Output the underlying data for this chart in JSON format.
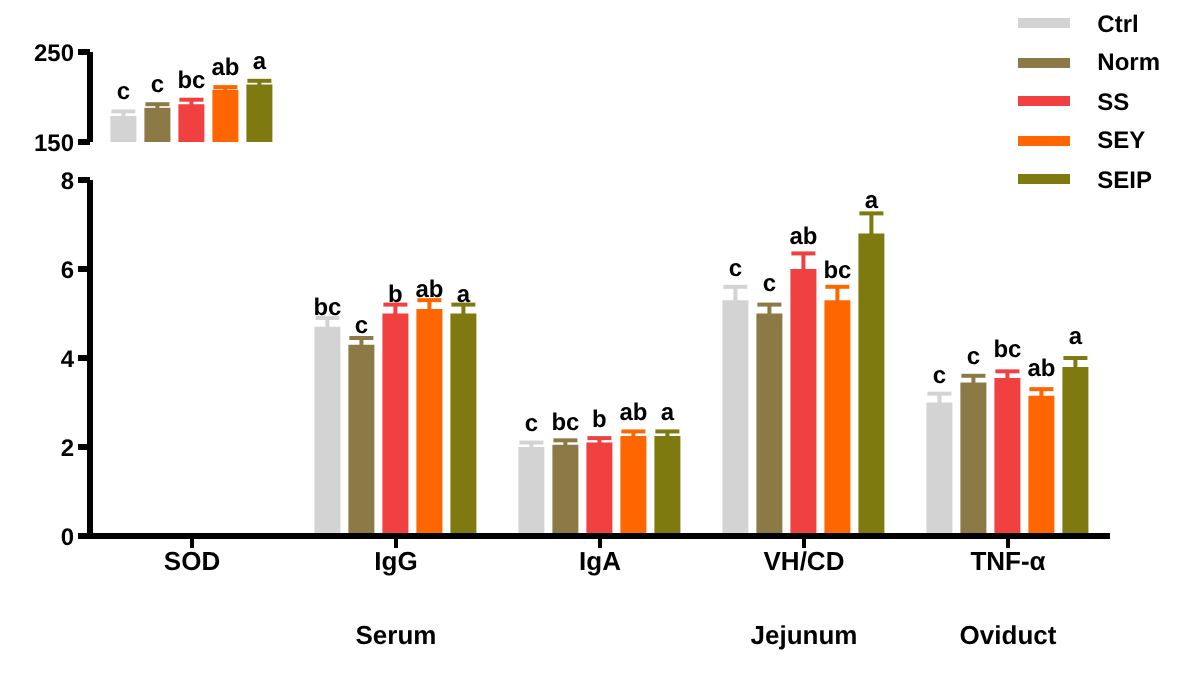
{
  "chart_data": [
    {
      "type": "bar",
      "categories": [
        null
      ],
      "ylim": [
        150,
        250
      ],
      "yticks": [
        150,
        250
      ],
      "tick_labels": "y",
      "series": [
        {
          "color": "#d3d3d3",
          "values": [
            179
          ],
          "errors": [
            5
          ],
          "value_labels": [
            "c"
          ]
        },
        {
          "color": "#8b7a45",
          "values": [
            188
          ],
          "errors": [
            4
          ],
          "value_labels": [
            "c"
          ]
        },
        {
          "color": "#f04040",
          "values": [
            192
          ],
          "errors": [
            5
          ],
          "value_labels": [
            "bc"
          ]
        },
        {
          "color": "#ff6600",
          "values": [
            208
          ],
          "errors": [
            3
          ],
          "value_labels": [
            "ab"
          ]
        },
        {
          "color": "#7f7a10",
          "values": [
            214
          ],
          "errors": [
            4
          ],
          "value_labels": [
            "a"
          ]
        }
      ]
    },
    {
      "type": "bar",
      "categories": [
        "SOD",
        "IgG",
        "IgA",
        "VH/CD",
        "TNF-α"
      ],
      "ylim": [
        0,
        8
      ],
      "yticks": [
        0,
        2,
        4,
        6,
        8
      ],
      "legend": "top right",
      "annotations": [
        "Serum",
        "Jejunum",
        "Oviduct"
      ],
      "series": [
        {
          "name": "Ctrl",
          "color": "#d3d3d3",
          "values": [
            null,
            4.7,
            2.0,
            5.3,
            3.0
          ],
          "errors": [
            null,
            0.2,
            0.1,
            0.3,
            0.2
          ],
          "value_labels": [
            null,
            "bc",
            "c",
            "c",
            "c"
          ]
        },
        {
          "name": "Norm",
          "color": "#8b7a45",
          "values": [
            null,
            4.3,
            2.05,
            5.0,
            3.45
          ],
          "errors": [
            null,
            0.15,
            0.1,
            0.2,
            0.15
          ],
          "value_labels": [
            null,
            "c",
            "bc",
            "c",
            "c"
          ]
        },
        {
          "name": "SS",
          "color": "#f04040",
          "values": [
            null,
            5.0,
            2.1,
            6.0,
            3.55
          ],
          "errors": [
            null,
            0.2,
            0.1,
            0.35,
            0.15
          ],
          "value_labels": [
            null,
            "b",
            "b",
            "ab",
            "bc"
          ]
        },
        {
          "name": "SEY",
          "color": "#ff6600",
          "values": [
            null,
            5.1,
            2.25,
            5.3,
            3.15
          ],
          "errors": [
            null,
            0.2,
            0.1,
            0.3,
            0.15
          ],
          "value_labels": [
            null,
            "ab",
            "ab",
            "bc",
            "ab"
          ]
        },
        {
          "name": "SEIP",
          "color": "#7f7a10",
          "values": [
            null,
            5.0,
            2.25,
            6.8,
            3.8
          ],
          "errors": [
            null,
            0.2,
            0.1,
            0.45,
            0.2
          ],
          "value_labels": [
            null,
            "a",
            "a",
            "a",
            "a"
          ]
        }
      ]
    }
  ]
}
